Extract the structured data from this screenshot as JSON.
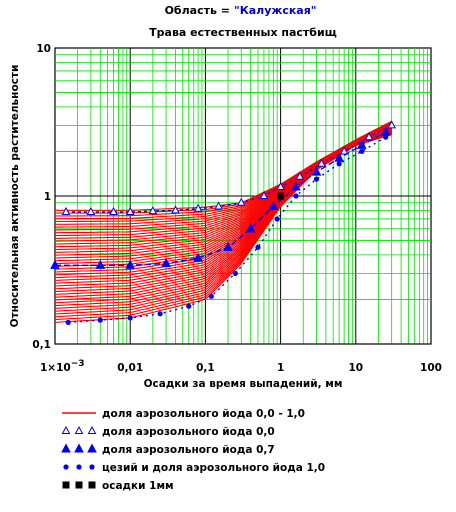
{
  "chart_data": {
    "type": "line",
    "region_label": "Область =",
    "region_name": "\"Калужская\"",
    "title": "Трава естественных пастбищ",
    "xlabel": "Осадки за время выпадений, мм",
    "ylabel": "Относительная  активность растительности",
    "x_scale": "log",
    "y_scale": "log",
    "xlim": [
      0.001,
      100
    ],
    "ylim": [
      0.1,
      10
    ],
    "grid": true,
    "x_ticks": [
      {
        "value": 0.001,
        "label": "1×10",
        "exp": "−3"
      },
      {
        "value": 0.01,
        "label": "0,01"
      },
      {
        "value": 0.1,
        "label": "0,1"
      },
      {
        "value": 1,
        "label": "1"
      },
      {
        "value": 10,
        "label": "10"
      },
      {
        "value": 100,
        "label": "100"
      }
    ],
    "y_ticks": [
      {
        "value": 0.1,
        "label": "0,1"
      },
      {
        "value": 1,
        "label": "1"
      },
      {
        "value": 10,
        "label": "10"
      }
    ],
    "band": {
      "name": "доля аэрозольного йода 0,0 - 1,0",
      "color": "#ff0000",
      "lower_x": [
        0.001,
        0.01,
        0.1,
        0.3,
        1,
        3,
        10,
        30
      ],
      "lower_y": [
        0.14,
        0.15,
        0.2,
        0.35,
        0.85,
        1.5,
        2.2,
        2.6
      ],
      "upper_x": [
        0.001,
        0.01,
        0.1,
        0.3,
        1,
        3,
        10,
        30
      ],
      "upper_y": [
        0.8,
        0.8,
        0.84,
        0.9,
        1.2,
        1.7,
        2.4,
        3.2
      ]
    },
    "series": [
      {
        "name": "доля аэрозольного йода 0,0",
        "marker": "triangle-open",
        "color": "#0000ff",
        "x": [
          0.0014,
          0.003,
          0.006,
          0.01,
          0.02,
          0.04,
          0.08,
          0.15,
          0.3,
          0.6,
          1.0,
          1.8,
          3.5,
          7,
          15,
          30
        ],
        "y": [
          0.78,
          0.78,
          0.78,
          0.78,
          0.79,
          0.8,
          0.82,
          0.85,
          0.9,
          1.0,
          1.15,
          1.35,
          1.65,
          2.0,
          2.5,
          3.0
        ]
      },
      {
        "name": "доля аэрозольного йода 0,7",
        "marker": "triangle-filled",
        "color": "#0000ff",
        "x": [
          0.001,
          0.004,
          0.01,
          0.03,
          0.08,
          0.2,
          0.4,
          0.8,
          1.6,
          3,
          6,
          12,
          25
        ],
        "y": [
          0.34,
          0.34,
          0.34,
          0.35,
          0.38,
          0.45,
          0.6,
          0.85,
          1.15,
          1.45,
          1.8,
          2.2,
          2.7
        ]
      },
      {
        "name": "цезий и доля аэрозольного йода  1,0",
        "marker": "dot",
        "color": "#0000ff",
        "x": [
          0.0015,
          0.004,
          0.01,
          0.025,
          0.06,
          0.12,
          0.25,
          0.5,
          0.9,
          1.6,
          3,
          6,
          12,
          25
        ],
        "y": [
          0.14,
          0.145,
          0.15,
          0.16,
          0.18,
          0.21,
          0.3,
          0.45,
          0.7,
          1.0,
          1.3,
          1.65,
          2.0,
          2.5
        ]
      },
      {
        "name": "осадки 1мм",
        "marker": "square",
        "color": "#000000",
        "x": [
          1
        ],
        "y": [
          1
        ]
      }
    ]
  }
}
